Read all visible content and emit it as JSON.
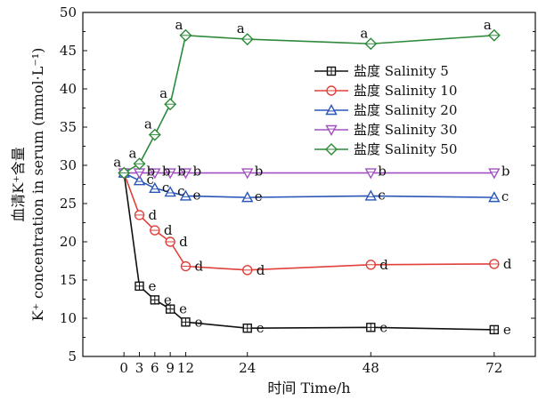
{
  "chart_data": {
    "type": "line",
    "xlabel": "时间 Time/h",
    "ylabel_lines": [
      "血清K⁺含量",
      "K⁺ concentration in serum (mmol·L⁻¹)"
    ],
    "x": [
      0,
      3,
      6,
      9,
      12,
      24,
      48,
      72
    ],
    "xticks": [
      0,
      3,
      6,
      9,
      12,
      24,
      48,
      72
    ],
    "xlim": [
      -8,
      80
    ],
    "ylim": [
      5,
      50
    ],
    "yticks": [
      5,
      10,
      15,
      20,
      25,
      30,
      35,
      40,
      45,
      50
    ],
    "grid": false,
    "legend": "right-top",
    "series": [
      {
        "name": "盐度 Salinity 5",
        "color": "#111111",
        "marker": "square-cross",
        "values": [
          29,
          14.2,
          12.4,
          11.2,
          9.5,
          8.7,
          8.8,
          8.5
        ],
        "labels": [
          "",
          "e",
          "e",
          "e",
          "e",
          "e",
          "e",
          "e"
        ]
      },
      {
        "name": "盐度 Salinity 10",
        "color": "#e0403a",
        "marker": "circle",
        "values": [
          29,
          23.5,
          21.5,
          20,
          16.8,
          16.3,
          17,
          17.1
        ],
        "labels": [
          "",
          "d",
          "d",
          "d",
          "d",
          "d",
          "d",
          "d"
        ]
      },
      {
        "name": "盐度 Salinity 20",
        "color": "#2a56b8",
        "marker": "triangle-up",
        "values": [
          29,
          28,
          27,
          26.5,
          26,
          25.8,
          26,
          25.8
        ],
        "labels": [
          "",
          "c",
          "c",
          "c",
          "e",
          "e",
          "c",
          "c"
        ]
      },
      {
        "name": "盐度 Salinity 30",
        "color": "#a050c0",
        "marker": "triangle-down",
        "values": [
          29,
          29,
          29,
          29,
          29,
          29,
          29,
          29
        ],
        "labels": [
          "",
          "b",
          "b",
          "b",
          "b",
          "b",
          "b",
          "b"
        ]
      },
      {
        "name": "盐度 Salinity 50",
        "color": "#2e8a3a",
        "marker": "diamond",
        "values": [
          29,
          30.2,
          34,
          38,
          47,
          46.5,
          45.9,
          47
        ],
        "labels": [
          "a",
          "a",
          "a",
          "a",
          "a",
          "a",
          "a",
          "a"
        ]
      }
    ]
  }
}
